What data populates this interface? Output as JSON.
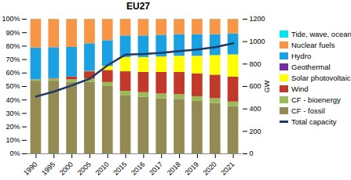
{
  "chart_data": {
    "type": "bar",
    "title": "EU27",
    "stacked": true,
    "grid": false,
    "legend": "right",
    "y2_label": "GW",
    "categories": [
      "1990",
      "1995",
      "2000",
      "2005",
      "2010",
      "2015",
      "2016",
      "2017",
      "2018",
      "2019",
      "2020",
      "2021"
    ],
    "ylim": [
      0,
      100
    ],
    "yticks": [
      {
        "value": 0,
        "label": "0%"
      },
      {
        "value": 10,
        "label": "10%"
      },
      {
        "value": 20,
        "label": "20%"
      },
      {
        "value": 30,
        "label": "30%"
      },
      {
        "value": 40,
        "label": "40%"
      },
      {
        "value": 50,
        "label": "50%"
      },
      {
        "value": 60,
        "label": "60%"
      },
      {
        "value": 70,
        "label": "70%"
      },
      {
        "value": 80,
        "label": "80%"
      },
      {
        "value": 90,
        "label": "90%"
      },
      {
        "value": 100,
        "label": "100%"
      }
    ],
    "y2lim": [
      0,
      1200
    ],
    "y2ticks": [
      0,
      200,
      400,
      600,
      800,
      1000,
      1200
    ],
    "series": [
      {
        "name": "CF - fossil",
        "type": "bar",
        "color": "#948a54",
        "values": [
          54,
          54,
          53,
          53,
          50,
          43,
          42,
          41,
          40.5,
          39,
          37.5,
          35
        ]
      },
      {
        "name": "CF - bioenergy",
        "type": "bar",
        "color": "#9bbb59",
        "values": [
          1,
          1.5,
          2,
          2.5,
          3,
          3.5,
          3.5,
          3.5,
          3.5,
          3.5,
          3.5,
          3.5
        ]
      },
      {
        "name": "Wind",
        "type": "bar",
        "color": "#c0392b",
        "values": [
          0,
          0.3,
          2,
          5.5,
          9,
          14.5,
          15,
          16,
          16.5,
          17,
          17.5,
          18.5
        ]
      },
      {
        "name": "Solar photovoltaic",
        "type": "bar",
        "color": "#ffff00",
        "values": [
          0,
          0,
          0,
          0.2,
          3,
          10.5,
          11,
          11.5,
          12,
          13,
          14.5,
          16.5
        ]
      },
      {
        "name": "Geothermal",
        "type": "bar",
        "color": "#7030a0",
        "values": [
          0.1,
          0.1,
          0.1,
          0.1,
          0.1,
          0.1,
          0.1,
          0.1,
          0.1,
          0.1,
          0.1,
          0.1
        ]
      },
      {
        "name": "Hydro",
        "type": "bar",
        "color": "#1ba1e2",
        "values": [
          23.5,
          23,
          22,
          20.5,
          19,
          16,
          16,
          16,
          16,
          16,
          15.5,
          15.5
        ]
      },
      {
        "name": "Nuclear fuels",
        "type": "bar",
        "color": "#f79646",
        "values": [
          21.3,
          21,
          20.8,
          18.1,
          15.8,
          12.3,
          12.3,
          11.8,
          11.3,
          11.3,
          11.3,
          10.8
        ]
      },
      {
        "name": "Tide, wave, ocean",
        "type": "bar",
        "color": "#00e5ee",
        "values": [
          0.1,
          0.1,
          0.1,
          0.1,
          0.1,
          0.1,
          0.1,
          0.1,
          0.1,
          0.1,
          0.1,
          0.1
        ]
      },
      {
        "name": "Total capacity",
        "type": "line",
        "axis": "y2",
        "color": "#1f3864",
        "values": [
          510,
          555,
          610,
          670,
          790,
          885,
          890,
          900,
          915,
          930,
          950,
          985
        ]
      }
    ]
  }
}
